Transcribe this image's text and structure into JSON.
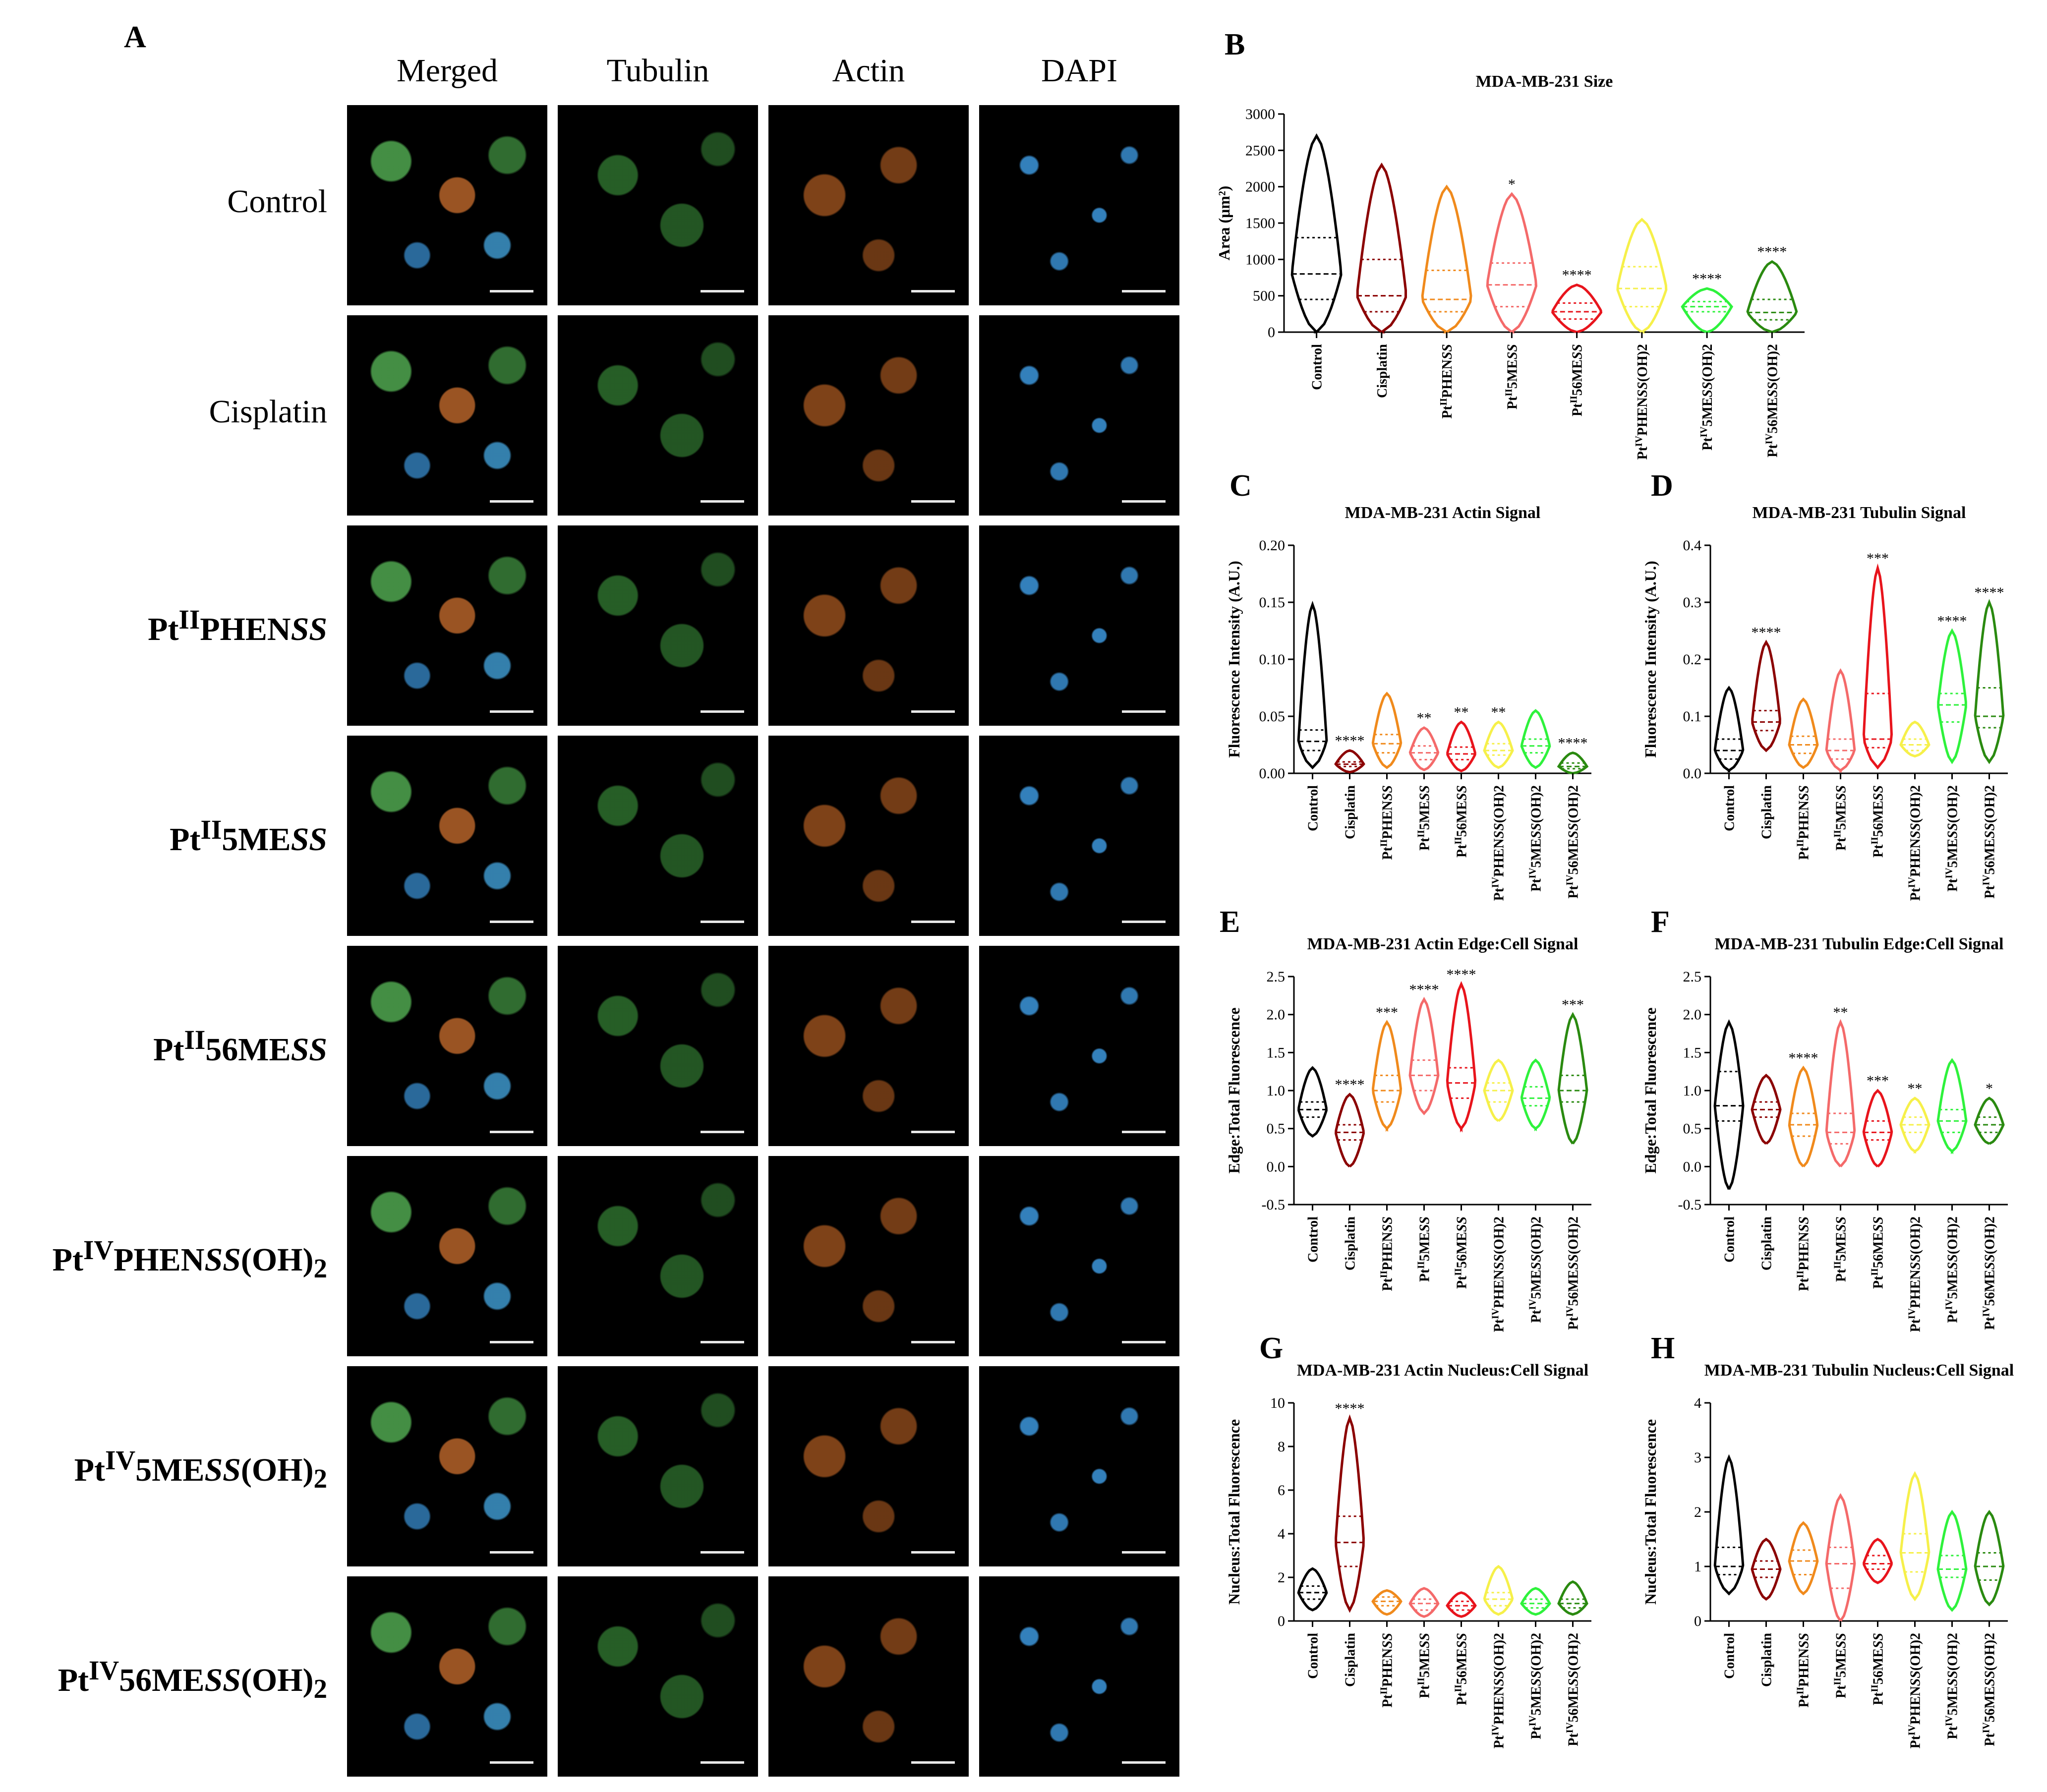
{
  "panels": {
    "A": "A",
    "columns": [
      "Merged",
      "Tubulin",
      "Actin",
      "DAPI"
    ],
    "rows": [
      {
        "label": "Control",
        "bold": false
      },
      {
        "label": "Cisplatin",
        "bold": false
      },
      {
        "label": "PtIIPHENSS",
        "html": "Pt<sup>II</sup>PHEN<i>SS</i>",
        "bold": true
      },
      {
        "label": "PtII5MESS",
        "html": "Pt<sup>II</sup>5ME<i>SS</i>",
        "bold": true
      },
      {
        "label": "PtII56MESS",
        "html": "Pt<sup>II</sup>56ME<i>SS</i>",
        "bold": true
      },
      {
        "label": "PtIVPHENSS(OH)2",
        "html": "Pt<sup>IV</sup>PHEN<i>SS</i>(OH)<sub>2</sub>",
        "bold": true
      },
      {
        "label": "PtIV5MESS(OH)2",
        "html": "Pt<sup>IV</sup>5ME<i>SS</i>(OH)<sub>2</sub>",
        "bold": true
      },
      {
        "label": "PtIV56MESS(OH)2",
        "html": "Pt<sup>IV</sup>56ME<i>SS</i>(OH)<sub>2</sub>",
        "bold": true
      }
    ]
  },
  "chart_data": [
    {
      "panel": "B",
      "type": "violin",
      "title": "MDA-MB-231 Size",
      "ylabel": "Area (μm²)",
      "ylim": [
        0,
        3000
      ],
      "yticks": [
        0,
        500,
        1000,
        1500,
        2000,
        2500,
        3000
      ],
      "categories": [
        "Control",
        "Cisplatin",
        "PtIIPHENSS",
        "PtII5MESS",
        "PtII56MESS",
        "PtIVPHENSS(OH)2",
        "PtIV5MESS(OH)2",
        "PtIV56MESS(OH)2"
      ],
      "median": [
        800,
        500,
        450,
        650,
        280,
        600,
        350,
        270
      ],
      "q1": [
        450,
        280,
        280,
        350,
        180,
        350,
        280,
        170
      ],
      "q3": [
        1300,
        1000,
        850,
        950,
        400,
        900,
        420,
        450
      ],
      "min": [
        0,
        0,
        0,
        0,
        0,
        0,
        0,
        0
      ],
      "max": [
        2700,
        2300,
        2000,
        1900,
        650,
        1550,
        600,
        970
      ],
      "significance": [
        "",
        "",
        "",
        "*",
        "****",
        "",
        "****",
        "****"
      ]
    },
    {
      "panel": "C",
      "type": "violin",
      "title": "MDA-MB-231 Actin Signal",
      "ylabel": "Fluorescence Intensity (A.U.)",
      "ylim": [
        0,
        0.2
      ],
      "yticks": [
        0.0,
        0.05,
        0.1,
        0.15,
        0.2
      ],
      "categories": [
        "Control",
        "Cisplatin",
        "PtIIPHENSS",
        "PtII5MESS",
        "PtII56MESS",
        "PtIVPHENSS(OH)2",
        "PtIV5MESS(OH)2",
        "PtIV56MESS(OH)2"
      ],
      "median": [
        0.028,
        0.008,
        0.026,
        0.018,
        0.017,
        0.02,
        0.024,
        0.006
      ],
      "q1": [
        0.02,
        0.006,
        0.018,
        0.012,
        0.012,
        0.016,
        0.018,
        0.004
      ],
      "q3": [
        0.038,
        0.01,
        0.034,
        0.024,
        0.023,
        0.026,
        0.03,
        0.009
      ],
      "min": [
        0.005,
        0.001,
        0.005,
        0.003,
        0.002,
        0.005,
        0.005,
        0.0
      ],
      "max": [
        0.148,
        0.02,
        0.07,
        0.04,
        0.045,
        0.045,
        0.055,
        0.018
      ],
      "significance": [
        "",
        "****",
        "",
        "**",
        "**",
        "**",
        "",
        "****"
      ]
    },
    {
      "panel": "D",
      "type": "violin",
      "title": "MDA-MB-231 Tubulin Signal",
      "ylabel": "Fluorescence Intensity (A.U.)",
      "ylim": [
        0,
        0.4
      ],
      "yticks": [
        0.0,
        0.1,
        0.2,
        0.3,
        0.4
      ],
      "categories": [
        "Control",
        "Cisplatin",
        "PtIIPHENSS",
        "PtII5MESS",
        "PtII56MESS",
        "PtIVPHENSS(OH)2",
        "PtIV5MESS(OH)2",
        "PtIV56MESS(OH)2"
      ],
      "median": [
        0.04,
        0.09,
        0.05,
        0.04,
        0.06,
        0.05,
        0.12,
        0.1
      ],
      "q1": [
        0.025,
        0.075,
        0.035,
        0.025,
        0.045,
        0.04,
        0.09,
        0.08
      ],
      "q3": [
        0.06,
        0.11,
        0.065,
        0.06,
        0.14,
        0.06,
        0.14,
        0.15
      ],
      "min": [
        0.005,
        0.04,
        0.01,
        0.005,
        0.01,
        0.03,
        0.02,
        0.02
      ],
      "max": [
        0.15,
        0.23,
        0.13,
        0.18,
        0.36,
        0.09,
        0.25,
        0.3
      ],
      "significance": [
        "",
        "****",
        "",
        "",
        "***",
        "",
        "****",
        "****"
      ]
    },
    {
      "panel": "E",
      "type": "violin",
      "title": "MDA-MB-231 Actin Edge:Cell Signal",
      "ylabel": "Edge:Total Fluorescence",
      "ylim": [
        -0.5,
        2.5
      ],
      "yticks": [
        -0.5,
        0.0,
        0.5,
        1.0,
        1.5,
        2.0,
        2.5
      ],
      "categories": [
        "Control",
        "Cisplatin",
        "PtIIPHENSS",
        "PtII5MESS",
        "PtII56MESS",
        "PtIVPHENSS(OH)2",
        "PtIV5MESS(OH)2",
        "PtIV56MESS(OH)2"
      ],
      "median": [
        0.75,
        0.45,
        1.0,
        1.2,
        1.1,
        1.0,
        0.9,
        1.0
      ],
      "q1": [
        0.65,
        0.35,
        0.85,
        1.0,
        0.9,
        0.85,
        0.8,
        0.85
      ],
      "q3": [
        0.85,
        0.55,
        1.2,
        1.4,
        1.3,
        1.1,
        1.05,
        1.2
      ],
      "min": [
        0.4,
        0.0,
        0.5,
        0.7,
        0.5,
        0.6,
        0.5,
        0.3
      ],
      "max": [
        1.3,
        0.95,
        1.9,
        2.2,
        2.4,
        1.4,
        1.4,
        2.0
      ],
      "significance": [
        "",
        "****",
        "***",
        "****",
        "****",
        "",
        "",
        "***"
      ]
    },
    {
      "panel": "F",
      "type": "violin",
      "title": "MDA-MB-231 Tubulin Edge:Cell Signal",
      "ylabel": "Edge:Total Fluorescence",
      "ylim": [
        -0.5,
        2.5
      ],
      "yticks": [
        -0.5,
        0.0,
        0.5,
        1.0,
        1.5,
        2.0,
        2.5
      ],
      "categories": [
        "Control",
        "Cisplatin",
        "PtIIPHENSS",
        "PtII5MESS",
        "PtII56MESS",
        "PtIVPHENSS(OH)2",
        "PtIV5MESS(OH)2",
        "PtIV56MESS(OH)2"
      ],
      "median": [
        0.8,
        0.75,
        0.55,
        0.45,
        0.45,
        0.55,
        0.6,
        0.55
      ],
      "q1": [
        0.6,
        0.65,
        0.4,
        0.3,
        0.35,
        0.45,
        0.45,
        0.45
      ],
      "q3": [
        1.25,
        0.85,
        0.7,
        0.7,
        0.6,
        0.65,
        0.75,
        0.65
      ],
      "min": [
        -0.3,
        0.3,
        0.0,
        0.0,
        0.0,
        0.2,
        0.2,
        0.3
      ],
      "max": [
        1.9,
        1.2,
        1.3,
        1.9,
        1.0,
        0.9,
        1.4,
        0.9
      ],
      "significance": [
        "",
        "",
        "****",
        "**",
        "***",
        "**",
        "",
        "*"
      ]
    },
    {
      "panel": "G",
      "type": "violin",
      "title": "MDA-MB-231 Actin Nucleus:Cell Signal",
      "ylabel": "Nucleus:Total Fluorescence",
      "ylim": [
        0,
        10
      ],
      "yticks": [
        0,
        2,
        4,
        6,
        8,
        10
      ],
      "categories": [
        "Control",
        "Cisplatin",
        "PtIIPHENSS",
        "PtII5MESS",
        "PtII56MESS",
        "PtIVPHENSS(OH)2",
        "PtIV5MESS(OH)2",
        "PtIV56MESS(OH)2"
      ],
      "median": [
        1.3,
        3.6,
        0.9,
        0.8,
        0.7,
        1.0,
        0.8,
        0.8
      ],
      "q1": [
        1.0,
        2.5,
        0.7,
        0.5,
        0.5,
        0.7,
        0.6,
        0.6
      ],
      "q3": [
        1.6,
        4.8,
        1.1,
        1.0,
        0.9,
        1.3,
        1.0,
        1.0
      ],
      "min": [
        0.5,
        0.5,
        0.3,
        0.2,
        0.2,
        0.3,
        0.3,
        0.3
      ],
      "max": [
        2.4,
        9.3,
        1.4,
        1.5,
        1.3,
        2.5,
        1.5,
        1.8
      ],
      "significance": [
        "",
        "****",
        "",
        "",
        "",
        "",
        "",
        ""
      ]
    },
    {
      "panel": "H",
      "type": "violin",
      "title": "MDA-MB-231 Tubulin Nucleus:Cell Signal",
      "ylabel": "Nucleus:Total Fluorescence",
      "ylim": [
        0,
        4
      ],
      "yticks": [
        0,
        1,
        2,
        3,
        4
      ],
      "categories": [
        "Control",
        "Cisplatin",
        "PtIIPHENSS",
        "PtII5MESS",
        "PtII56MESS",
        "PtIVPHENSS(OH)2",
        "PtIV5MESS(OH)2",
        "PtIV56MESS(OH)2"
      ],
      "median": [
        1.0,
        0.95,
        1.1,
        1.05,
        1.05,
        1.25,
        0.95,
        1.0
      ],
      "q1": [
        0.85,
        0.8,
        0.85,
        0.6,
        0.95,
        0.9,
        0.8,
        0.75
      ],
      "q3": [
        1.35,
        1.1,
        1.3,
        1.35,
        1.2,
        1.6,
        1.2,
        1.25
      ],
      "min": [
        0.5,
        0.4,
        0.5,
        0.0,
        0.7,
        0.4,
        0.2,
        0.3
      ],
      "max": [
        3.0,
        1.5,
        1.8,
        2.3,
        1.5,
        2.7,
        2.0,
        2.0
      ],
      "significance": [
        "",
        "",
        "",
        "",
        "",
        "",
        "",
        ""
      ]
    }
  ],
  "category_labels_html": [
    "Control",
    "Cisplatin",
    "Pt<tspan baseline-shift='super' font-size='70%'>II</tspan>PHEN<tspan font-style='italic'>SS</tspan>",
    "Pt<tspan baseline-shift='super' font-size='70%'>II</tspan>5ME<tspan font-style='italic'>SS</tspan>",
    "Pt<tspan baseline-shift='super' font-size='70%'>II</tspan>56ME<tspan font-style='italic'>SS</tspan>",
    "Pt<tspan baseline-shift='super' font-size='70%'>IV</tspan>PHEN<tspan font-style='italic'>SS</tspan>(OH)2",
    "Pt<tspan baseline-shift='super' font-size='70%'>IV</tspan>5ME<tspan font-style='italic'>SS</tspan>(OH)2",
    "Pt<tspan baseline-shift='super' font-size='70%'>IV</tspan>56ME<tspan font-style='italic'>SS</tspan>(OH)2"
  ],
  "colors": [
    "#000000",
    "#8b0000",
    "#f08a1c",
    "#f46a6a",
    "#e8141c",
    "#f6f04a",
    "#2ef23c",
    "#2a8a10"
  ]
}
